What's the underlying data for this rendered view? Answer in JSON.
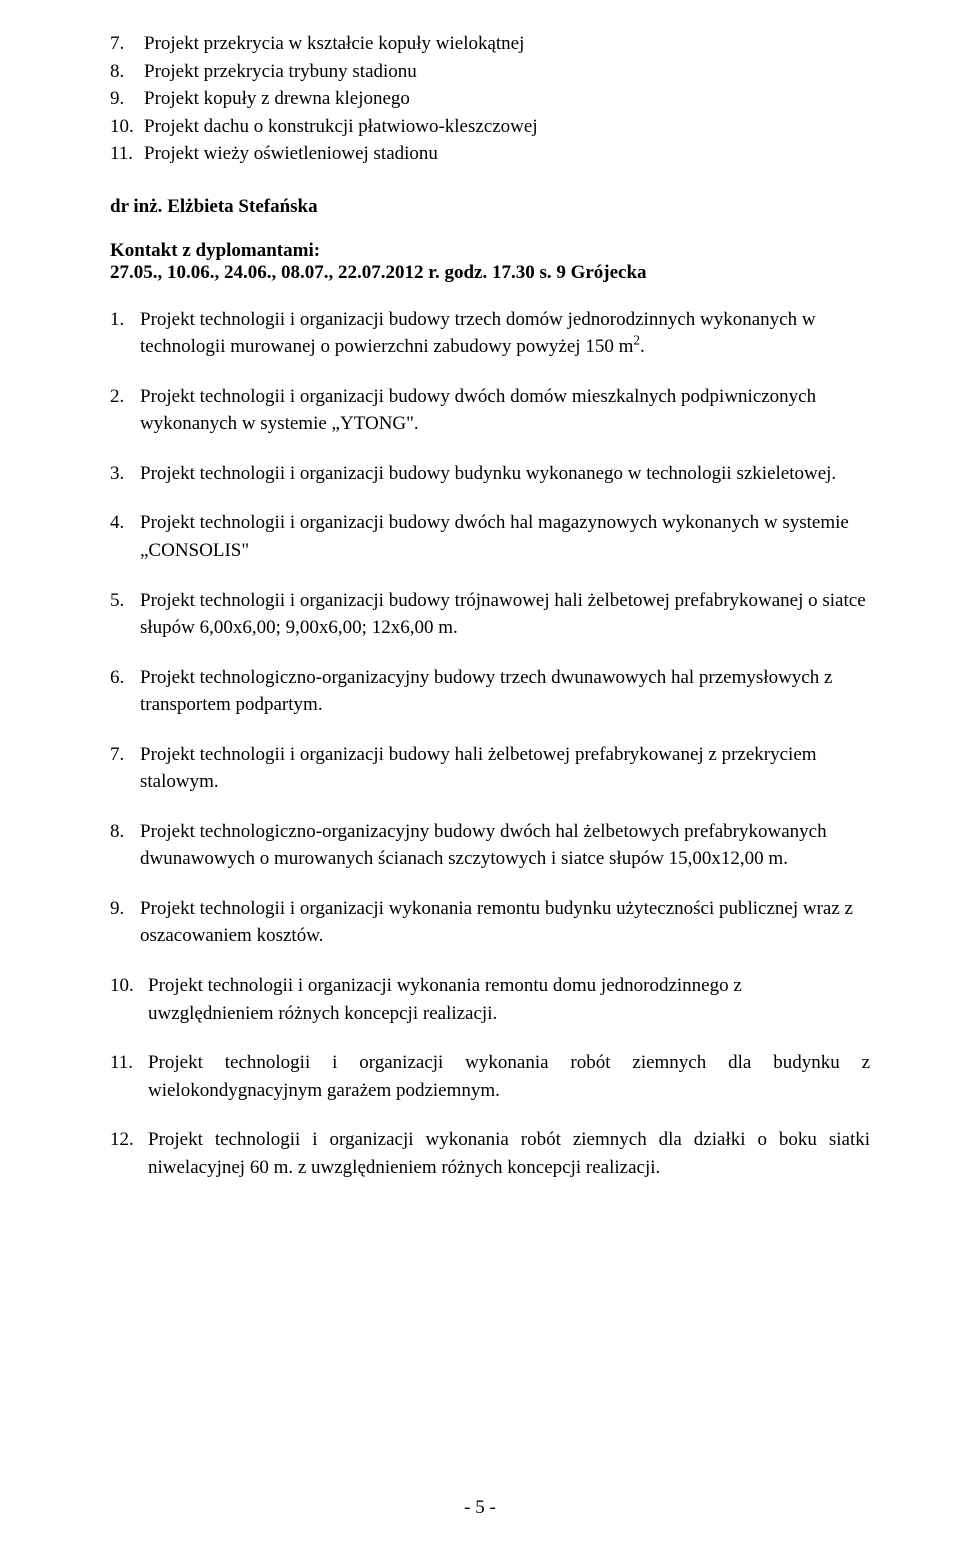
{
  "cont_items": [
    {
      "n": "7.",
      "t": "Projekt przekrycia w kształcie kopuły wielokątnej"
    },
    {
      "n": "8.",
      "t": "Projekt przekrycia trybuny stadionu"
    },
    {
      "n": "9.",
      "t": "Projekt kopuły z drewna klejonego"
    },
    {
      "n": "10.",
      "t": "Projekt dachu o konstrukcji płatwiowo-kleszczowej"
    },
    {
      "n": "11.",
      "t": "Projekt wieży oświetleniowej stadionu"
    }
  ],
  "section_prefix": "dr  inż. ",
  "section_name": "Elżbieta Stefańska",
  "contact": {
    "label": "Kontakt z dyplomantami:",
    "line": "27.05., 10.06., 24.06., 08.07., 22.07.2012 r.  godz. 17.30 s. 9 Grójecka"
  },
  "items": [
    {
      "n": "1.",
      "pre": "Projekt technologii i organizacji budowy trzech domów jednorodzinnych wykonanych w technologii murowanej o powierzchni zabudowy powyżej 150 m",
      "sup": "2",
      "post": "."
    },
    {
      "n": "2.",
      "t": "Projekt technologii i organizacji budowy dwóch domów mieszkalnych podpiwniczonych wykonanych w systemie „YTONG\"."
    },
    {
      "n": "3.",
      "t": "Projekt technologii i organizacji budowy budynku wykonanego w technologii szkieletowej."
    },
    {
      "n": "4.",
      "t": "Projekt technologii i organizacji budowy dwóch hal magazynowych wykonanych w systemie „CONSOLIS\""
    },
    {
      "n": "5.",
      "t": "Projekt technologii i organizacji budowy trójnawowej hali żelbetowej prefabrykowanej o siatce słupów 6,00x6,00;  9,00x6,00; 12x6,00 m."
    },
    {
      "n": "6.",
      "t": "Projekt technologiczno-organizacyjny budowy trzech dwunawowych hal przemysłowych z transportem podpartym."
    },
    {
      "n": "7.",
      "t": "Projekt technologii i organizacji budowy hali żelbetowej prefabrykowanej z przekryciem stalowym."
    },
    {
      "n": "8.",
      "t": "Projekt technologiczno-organizacyjny budowy dwóch hal żelbetowych prefabrykowanych dwunawowych o murowanych ścianach szczytowych i siatce słupów 15,00x12,00 m."
    },
    {
      "n": "9.",
      "t": "Projekt technologii i organizacji wykonania remontu budynku użyteczności publicznej wraz z oszacowaniem kosztów."
    },
    {
      "n": "10.",
      "t": "Projekt technologii i organizacji  wykonania remontu domu jednorodzinnego z uwzględnieniem różnych koncepcji realizacji.",
      "wide": true
    },
    {
      "n": "11.",
      "t": "Projekt technologii i organizacji wykonania robót ziemnych dla budynku z wielokondygnacyjnym garażem podziemnym.",
      "wide": true,
      "justify": true
    },
    {
      "n": "12.",
      "t": "Projekt technologii i organizacji wykonania robót ziemnych dla działki o boku siatki niwelacyjnej 60 m. z uwzględnieniem różnych koncepcji realizacji.",
      "wide": true,
      "justify": true
    }
  ],
  "page_number": "- 5 -"
}
